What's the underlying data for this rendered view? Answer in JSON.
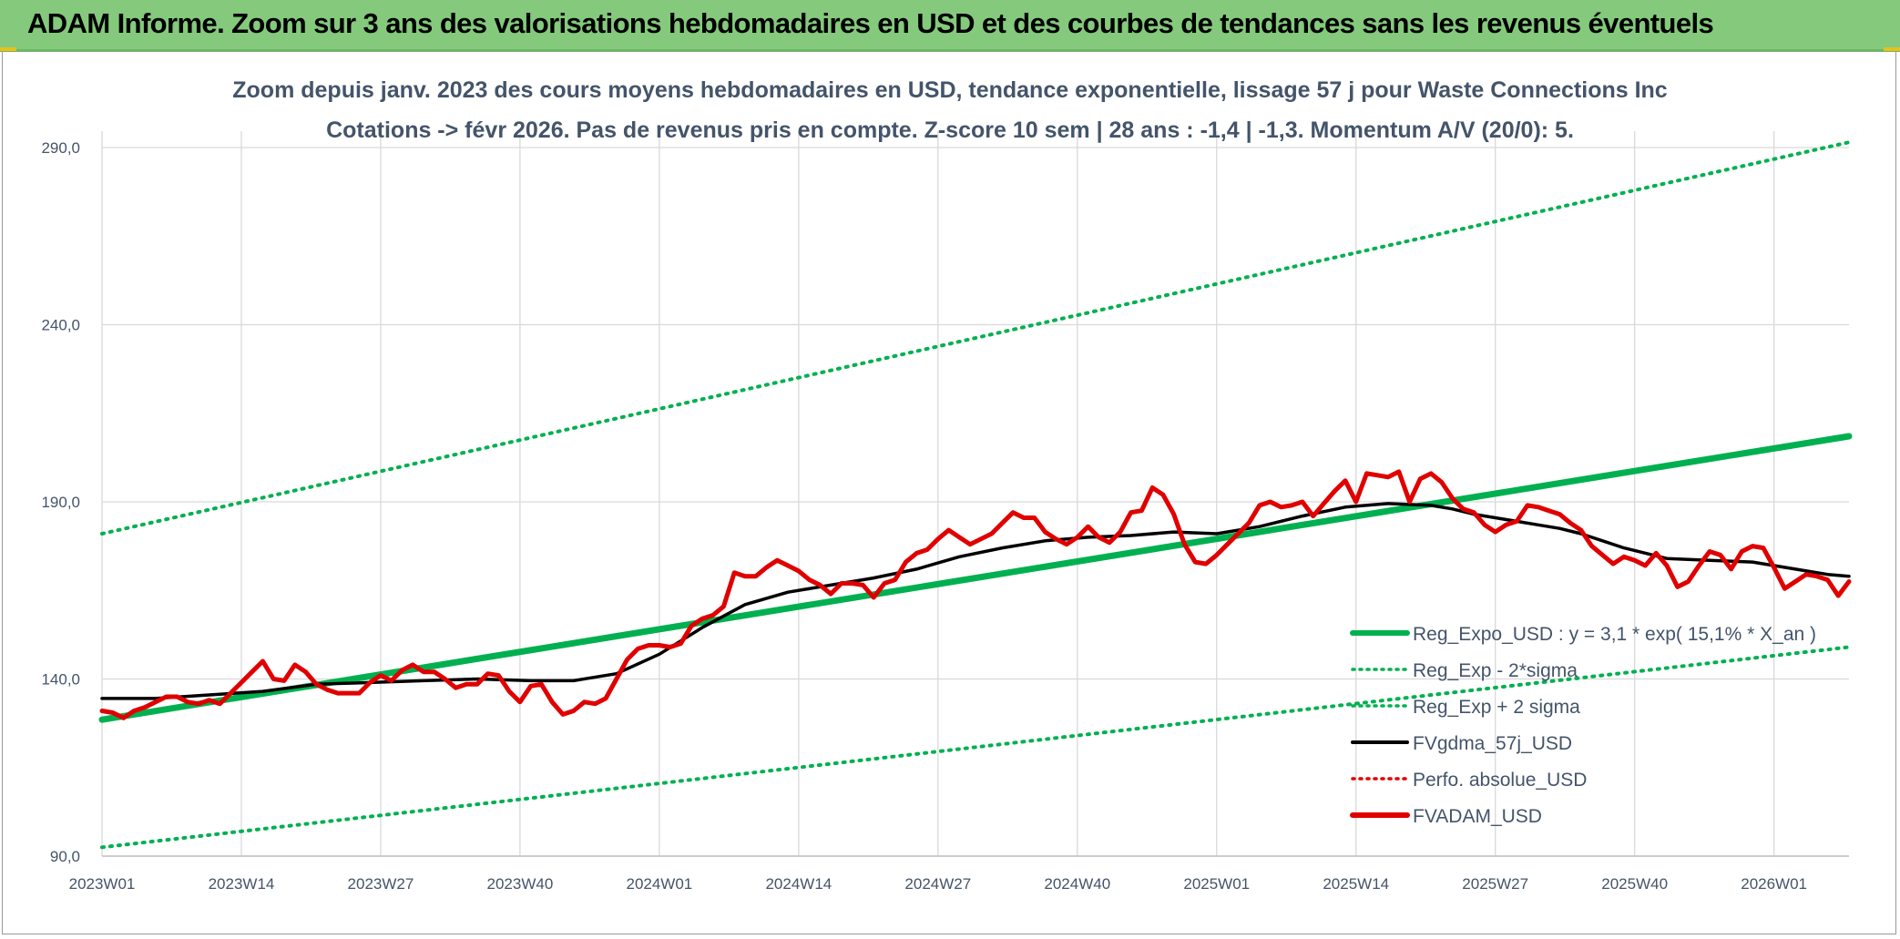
{
  "banner": {
    "title": "ADAM Informe. Zoom sur 3 ans des valorisations hebdomadaires en USD et des courbes de tendances sans les revenus éventuels"
  },
  "chart_data": {
    "type": "line",
    "title_line1": "Zoom depuis janv. 2023 des cours moyens hebdomadaires en USD, tendance exponentielle, lissage 57 j pour Waste Connections Inc",
    "title_line2": "Cotations -> févr 2026. Pas de revenus pris en compte. Z-score 10 sem | 28 ans : -1,4 | -1,3. Momentum A/V (20/0): 5.",
    "xlabel": "",
    "ylabel": "",
    "ylim": [
      90,
      290
    ],
    "week_range": [
      0,
      163
    ],
    "y_ticks": [
      {
        "value": 90,
        "label": "90,0"
      },
      {
        "value": 140,
        "label": "140,0"
      },
      {
        "value": 190,
        "label": "190,0"
      },
      {
        "value": 240,
        "label": "240,0"
      },
      {
        "value": 290,
        "label": "290,0"
      }
    ],
    "x_ticks": [
      {
        "week": 0,
        "label": "2023W01"
      },
      {
        "week": 13,
        "label": "2023W14"
      },
      {
        "week": 26,
        "label": "2023W27"
      },
      {
        "week": 39,
        "label": "2023W40"
      },
      {
        "week": 52,
        "label": "2024W01"
      },
      {
        "week": 65,
        "label": "2024W14"
      },
      {
        "week": 78,
        "label": "2024W27"
      },
      {
        "week": 91,
        "label": "2024W40"
      },
      {
        "week": 104,
        "label": "2025W01"
      },
      {
        "week": 117,
        "label": "2025W14"
      },
      {
        "week": 130,
        "label": "2025W27"
      },
      {
        "week": 143,
        "label": "2025W40"
      },
      {
        "week": 156,
        "label": "2026W01"
      }
    ],
    "series": [
      {
        "name": "Reg_Expo_USD : y = 3,1 * exp( 15,1% *  X_an )",
        "color": "#00b050",
        "style": "solid-thick",
        "points": [
          [
            0,
            128.5
          ],
          [
            163,
            208.5
          ]
        ]
      },
      {
        "name": "Reg_Exp - 2*sigma",
        "color": "#00b050",
        "style": "dotted",
        "points": [
          [
            0,
            92.5
          ],
          [
            163,
            149.0
          ]
        ]
      },
      {
        "name": "Reg_Exp + 2 sigma",
        "color": "#00b050",
        "style": "dotted",
        "points": [
          [
            0,
            181.0
          ],
          [
            163,
            291.5
          ]
        ]
      },
      {
        "name": "FVgdma_57j_USD",
        "color": "#000000",
        "style": "solid",
        "points": [
          [
            0,
            134.5
          ],
          [
            5,
            134.5
          ],
          [
            10,
            135.5
          ],
          [
            15,
            136.5
          ],
          [
            20,
            138.5
          ],
          [
            25,
            139.0
          ],
          [
            30,
            139.5
          ],
          [
            35,
            140.0
          ],
          [
            40,
            139.5
          ],
          [
            44,
            139.5
          ],
          [
            48,
            141.5
          ],
          [
            52,
            147.0
          ],
          [
            56,
            154.5
          ],
          [
            60,
            161.0
          ],
          [
            64,
            164.5
          ],
          [
            68,
            166.5
          ],
          [
            72,
            168.5
          ],
          [
            76,
            171.0
          ],
          [
            80,
            174.5
          ],
          [
            84,
            177.0
          ],
          [
            88,
            179.0
          ],
          [
            92,
            180.0
          ],
          [
            96,
            180.5
          ],
          [
            100,
            181.5
          ],
          [
            104,
            181.0
          ],
          [
            108,
            183.0
          ],
          [
            112,
            186.0
          ],
          [
            116,
            188.5
          ],
          [
            120,
            189.5
          ],
          [
            124,
            189.0
          ],
          [
            126,
            188.0
          ],
          [
            128,
            186.5
          ],
          [
            130,
            185.5
          ],
          [
            132,
            184.5
          ],
          [
            134,
            183.5
          ],
          [
            136,
            182.5
          ],
          [
            138,
            181.0
          ],
          [
            140,
            179.0
          ],
          [
            142,
            177.0
          ],
          [
            146,
            174.0
          ],
          [
            150,
            173.5
          ],
          [
            154,
            173.0
          ],
          [
            158,
            171.0
          ],
          [
            161,
            169.5
          ],
          [
            163,
            169.0
          ]
        ]
      },
      {
        "name": "Perfo. absolue_USD",
        "color": "#e00000",
        "style": "dotted",
        "points": []
      },
      {
        "name": "FVADAM_USD",
        "color": "#e00000",
        "style": "solid-thick",
        "points": [
          [
            0,
            131.0
          ],
          [
            1,
            130.5
          ],
          [
            2,
            129.0
          ],
          [
            3,
            131.0
          ],
          [
            4,
            132.0
          ],
          [
            5,
            133.5
          ],
          [
            6,
            135.0
          ],
          [
            7,
            135.0
          ],
          [
            8,
            133.5
          ],
          [
            9,
            133.0
          ],
          [
            10,
            134.0
          ],
          [
            11,
            133.0
          ],
          [
            12,
            136.0
          ],
          [
            13,
            139.0
          ],
          [
            14,
            142.0
          ],
          [
            15,
            145.0
          ],
          [
            16,
            140.0
          ],
          [
            17,
            139.5
          ],
          [
            18,
            144.0
          ],
          [
            19,
            142.0
          ],
          [
            20,
            138.5
          ],
          [
            21,
            137.0
          ],
          [
            22,
            136.0
          ],
          [
            23,
            136.0
          ],
          [
            24,
            136.0
          ],
          [
            25,
            139.0
          ],
          [
            26,
            141.0
          ],
          [
            27,
            139.5
          ],
          [
            28,
            142.5
          ],
          [
            29,
            144.0
          ],
          [
            30,
            142.0
          ],
          [
            31,
            142.0
          ],
          [
            32,
            140.0
          ],
          [
            33,
            137.5
          ],
          [
            34,
            138.5
          ],
          [
            35,
            138.5
          ],
          [
            36,
            141.5
          ],
          [
            37,
            141.0
          ],
          [
            38,
            136.5
          ],
          [
            39,
            133.5
          ],
          [
            40,
            138.0
          ],
          [
            41,
            138.5
          ],
          [
            42,
            133.5
          ],
          [
            43,
            130.0
          ],
          [
            44,
            131.0
          ],
          [
            45,
            133.5
          ],
          [
            46,
            133.0
          ],
          [
            47,
            134.5
          ],
          [
            48,
            140.0
          ],
          [
            49,
            145.5
          ],
          [
            50,
            148.5
          ],
          [
            51,
            149.5
          ],
          [
            52,
            149.5
          ],
          [
            53,
            149.0
          ],
          [
            54,
            150.0
          ],
          [
            55,
            155.0
          ],
          [
            56,
            157.0
          ],
          [
            57,
            158.0
          ],
          [
            58,
            160.5
          ],
          [
            59,
            170.0
          ],
          [
            60,
            169.0
          ],
          [
            61,
            169.0
          ],
          [
            62,
            171.5
          ],
          [
            63,
            173.5
          ],
          [
            64,
            172.0
          ],
          [
            65,
            170.5
          ],
          [
            66,
            168.0
          ],
          [
            67,
            166.5
          ],
          [
            68,
            164.0
          ],
          [
            69,
            167.0
          ],
          [
            70,
            167.0
          ],
          [
            71,
            166.5
          ],
          [
            72,
            163.0
          ],
          [
            73,
            167.0
          ],
          [
            74,
            168.0
          ],
          [
            75,
            173.0
          ],
          [
            76,
            175.5
          ],
          [
            77,
            176.5
          ],
          [
            78,
            179.5
          ],
          [
            79,
            182.0
          ],
          [
            80,
            180.0
          ],
          [
            81,
            178.0
          ],
          [
            82,
            179.5
          ],
          [
            83,
            181.0
          ],
          [
            84,
            184.0
          ],
          [
            85,
            187.0
          ],
          [
            86,
            185.5
          ],
          [
            87,
            185.5
          ],
          [
            88,
            181.5
          ],
          [
            89,
            179.5
          ],
          [
            90,
            178.0
          ],
          [
            91,
            180.0
          ],
          [
            92,
            183.0
          ],
          [
            93,
            180.0
          ],
          [
            94,
            178.5
          ],
          [
            95,
            181.5
          ],
          [
            96,
            187.0
          ],
          [
            97,
            187.5
          ],
          [
            98,
            194.0
          ],
          [
            99,
            192.0
          ],
          [
            100,
            186.5
          ],
          [
            101,
            178.0
          ],
          [
            102,
            173.0
          ],
          [
            103,
            172.5
          ],
          [
            104,
            175.0
          ],
          [
            105,
            178.0
          ],
          [
            106,
            181.0
          ],
          [
            107,
            184.0
          ],
          [
            108,
            189.0
          ],
          [
            109,
            190.0
          ],
          [
            110,
            188.5
          ],
          [
            111,
            189.0
          ],
          [
            112,
            190.0
          ],
          [
            113,
            186.0
          ],
          [
            114,
            189.5
          ],
          [
            115,
            193.0
          ],
          [
            116,
            196.0
          ],
          [
            117,
            190.0
          ],
          [
            118,
            198.0
          ],
          [
            119,
            197.5
          ],
          [
            120,
            197.0
          ],
          [
            121,
            198.5
          ],
          [
            122,
            190.0
          ],
          [
            123,
            196.5
          ],
          [
            124,
            198.0
          ],
          [
            125,
            195.5
          ],
          [
            126,
            191.0
          ],
          [
            127,
            188.0
          ],
          [
            128,
            187.0
          ],
          [
            129,
            183.5
          ],
          [
            130,
            181.5
          ],
          [
            131,
            183.5
          ],
          [
            132,
            184.5
          ],
          [
            133,
            189.0
          ],
          [
            134,
            188.5
          ],
          [
            135,
            187.5
          ],
          [
            136,
            186.5
          ],
          [
            137,
            184.0
          ],
          [
            138,
            182.0
          ],
          [
            139,
            177.5
          ],
          [
            140,
            175.0
          ],
          [
            141,
            172.5
          ],
          [
            142,
            174.5
          ],
          [
            143,
            173.5
          ],
          [
            144,
            172.0
          ],
          [
            145,
            175.5
          ],
          [
            146,
            172.0
          ],
          [
            147,
            166.0
          ],
          [
            148,
            167.5
          ],
          [
            149,
            172.0
          ],
          [
            150,
            176.0
          ],
          [
            151,
            175.0
          ],
          [
            152,
            171.0
          ],
          [
            153,
            176.0
          ],
          [
            154,
            177.5
          ],
          [
            155,
            177.0
          ],
          [
            156,
            171.5
          ],
          [
            157,
            165.5
          ],
          [
            158,
            167.5
          ],
          [
            159,
            169.5
          ],
          [
            160,
            169.0
          ],
          [
            161,
            168.0
          ],
          [
            162,
            163.5
          ],
          [
            163,
            167.5
          ]
        ]
      }
    ],
    "legend_position": "bottom-right"
  }
}
